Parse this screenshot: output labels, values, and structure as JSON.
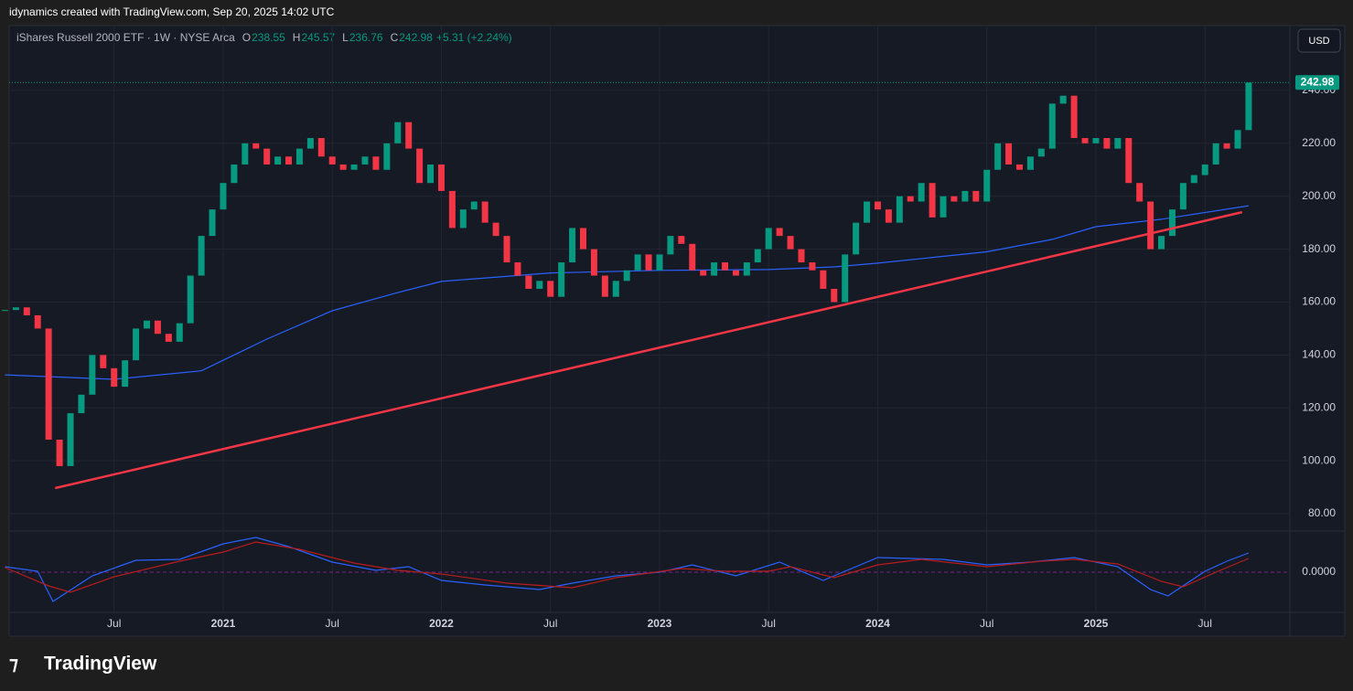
{
  "header": {
    "attribution": "idynamics created with TradingView.com, Sep 20, 2025 14:02 UTC",
    "instrument": "iShares Russell 2000 ETF · 1W · NYSE Arca",
    "ohlc": [
      {
        "label": "O",
        "value": 238.55
      },
      {
        "label": "H",
        "value": 245.57
      },
      {
        "label": "L",
        "value": 236.76
      },
      {
        "label": "C",
        "value": 242.98
      }
    ],
    "change": "+5.31 (+2.24%)",
    "currency": "USD"
  },
  "footer": {
    "brand": "TradingView"
  },
  "chart_data": {
    "type": "candlestick",
    "x": [
      2020,
      2020.05,
      2020.1,
      2020.15,
      2020.2,
      2020.25,
      2020.3,
      2020.35,
      2020.4,
      2020.45,
      2020.5,
      2020.55,
      2020.6,
      2020.65,
      2020.7,
      2020.75,
      2020.8,
      2020.85,
      2020.9,
      2020.95,
      2021,
      2021.05,
      2021.1,
      2021.15,
      2021.2,
      2021.25,
      2021.3,
      2021.35,
      2021.4,
      2021.45,
      2021.5,
      2021.55,
      2021.6,
      2021.65,
      2021.7,
      2021.75,
      2021.8,
      2021.85,
      2021.9,
      2021.95,
      2022,
      2022.05,
      2022.1,
      2022.15,
      2022.2,
      2022.25,
      2022.3,
      2022.35,
      2022.4,
      2022.45,
      2022.5,
      2022.55,
      2022.6,
      2022.65,
      2022.7,
      2022.75,
      2022.8,
      2022.85,
      2022.9,
      2022.95,
      2023,
      2023.05,
      2023.1,
      2023.15,
      2023.2,
      2023.25,
      2023.3,
      2023.35,
      2023.4,
      2023.45,
      2023.5,
      2023.55,
      2023.6,
      2023.65,
      2023.7,
      2023.75,
      2023.8,
      2023.85,
      2023.9,
      2023.95,
      2024,
      2024.05,
      2024.1,
      2024.15,
      2024.2,
      2024.25,
      2024.3,
      2024.35,
      2024.4,
      2024.45,
      2024.5,
      2024.55,
      2024.6,
      2024.65,
      2024.7,
      2024.75,
      2024.8,
      2024.85,
      2024.9,
      2024.95,
      2025,
      2025.05,
      2025.1,
      2025.15,
      2025.2,
      2025.25,
      2025.3,
      2025.35,
      2025.4,
      2025.45,
      2025.5,
      2025.55,
      2025.6,
      2025.65,
      2025.7
    ],
    "values": [
      157,
      158,
      155,
      150,
      108,
      98,
      118,
      125,
      140,
      135,
      128,
      138,
      150,
      153,
      148,
      145,
      152,
      170,
      185,
      195,
      205,
      212,
      220,
      218,
      212,
      215,
      212,
      218,
      222,
      215,
      212,
      210,
      212,
      215,
      210,
      220,
      228,
      218,
      205,
      212,
      202,
      188,
      195,
      198,
      190,
      185,
      175,
      170,
      165,
      168,
      162,
      175,
      188,
      180,
      170,
      162,
      168,
      172,
      178,
      172,
      178,
      185,
      182,
      172,
      170,
      175,
      172,
      170,
      175,
      180,
      188,
      185,
      180,
      175,
      172,
      165,
      160,
      178,
      190,
      198,
      195,
      190,
      200,
      198,
      205,
      192,
      200,
      198,
      202,
      198,
      210,
      220,
      212,
      210,
      215,
      218,
      235,
      238,
      222,
      220,
      222,
      218,
      222,
      205,
      198,
      180,
      185,
      195,
      205,
      208,
      212,
      220,
      218,
      225,
      242.98
    ],
    "up_color": "#089981",
    "down_color": "#f23645",
    "xlim": [
      2020.019,
      2025.889
    ],
    "xticks": [
      {
        "value": 2020.5,
        "label": "Jul"
      },
      2021,
      {
        "value": 2021.5,
        "label": "Jul"
      },
      2022,
      {
        "value": 2022.5,
        "label": "Jul"
      },
      2023,
      {
        "value": 2023.5,
        "label": "Jul"
      },
      2024,
      {
        "value": 2024.5,
        "label": "Jul"
      },
      2025,
      {
        "value": 2025.5,
        "label": "Jul"
      }
    ],
    "ylim": [
      73.8,
      264.5
    ],
    "yticks": [
      {
        "value": 80,
        "label": "80.00"
      },
      {
        "value": 100,
        "label": "100.00"
      },
      {
        "value": 120,
        "label": "120.00"
      },
      {
        "value": 140,
        "label": "140.00"
      },
      {
        "value": 160,
        "label": "160.00"
      },
      {
        "value": 180,
        "label": "180.00"
      },
      {
        "value": 200,
        "label": "200.00"
      },
      {
        "value": 220,
        "label": "220.00"
      },
      {
        "value": 240,
        "label": "240.00"
      }
    ],
    "grid": true,
    "moving_average": {
      "color": "#2962ff",
      "x": [
        2020,
        2020.5,
        2020.9,
        2021.2,
        2021.5,
        2021.8,
        2022,
        2022.5,
        2023,
        2023.5,
        2023.8,
        2024,
        2024.5,
        2024.8,
        2025,
        2025.3,
        2025.7
      ],
      "values": [
        132.5,
        130.8,
        134,
        146,
        156.7,
        163.6,
        167.8,
        171,
        172,
        172.3,
        173.3,
        174.7,
        179,
        183.7,
        188.5,
        191.3,
        196.4
      ]
    },
    "trendline": {
      "color": "#f23645",
      "x": [
        2020.23,
        2025.67
      ],
      "values": [
        89.7,
        194
      ]
    },
    "oscillator": {
      "ylim": [
        -6.9,
        4.4
      ],
      "yticks": [
        {
          "value": 0,
          "label": "0.0000"
        }
      ],
      "lines": [
        {
          "color": "#2962ff",
          "x": [
            2020,
            2020.15,
            2020.22,
            2020.4,
            2020.6,
            2020.8,
            2021,
            2021.15,
            2021.3,
            2021.5,
            2021.7,
            2021.85,
            2022,
            2022.2,
            2022.45,
            2022.6,
            2022.8,
            2023,
            2023.15,
            2023.35,
            2023.55,
            2023.75,
            2023.9,
            2024,
            2024.3,
            2024.5,
            2024.7,
            2024.9,
            2025.1,
            2025.25,
            2025.33,
            2025.5,
            2025.6,
            2025.7
          ],
          "values": [
            0.6,
            0.1,
            -3.2,
            -0.4,
            1.3,
            1.4,
            3.1,
            3.8,
            2.8,
            1.1,
            0.2,
            0.6,
            -0.9,
            -1.4,
            -1.9,
            -1.2,
            -0.4,
            0,
            0.8,
            -0.4,
            1.1,
            -0.9,
            0.6,
            1.6,
            1.4,
            0.8,
            1.1,
            1.6,
            0.6,
            -1.9,
            -2.6,
            0.1,
            1.2,
            2.1
          ]
        },
        {
          "color": "#b71c1c",
          "x": [
            2020,
            2020.2,
            2020.3,
            2020.5,
            2020.8,
            2021,
            2021.15,
            2021.35,
            2021.6,
            2021.8,
            2022,
            2022.3,
            2022.6,
            2022.8,
            2023.1,
            2023.3,
            2023.5,
            2023.6,
            2023.8,
            2024,
            2024.2,
            2024.5,
            2024.75,
            2024.9,
            2025.1,
            2025.3,
            2025.4,
            2025.55,
            2025.7
          ],
          "values": [
            0.5,
            -1.5,
            -2.2,
            -0.5,
            1.2,
            2.2,
            3.3,
            2.5,
            1,
            0.2,
            -0.2,
            -1.2,
            -1.7,
            -0.6,
            0.4,
            0.1,
            0.1,
            0.6,
            -0.6,
            0.8,
            1.4,
            0.6,
            1.2,
            1.4,
            0.9,
            -1,
            -1.6,
            0,
            1.5
          ]
        }
      ]
    }
  }
}
